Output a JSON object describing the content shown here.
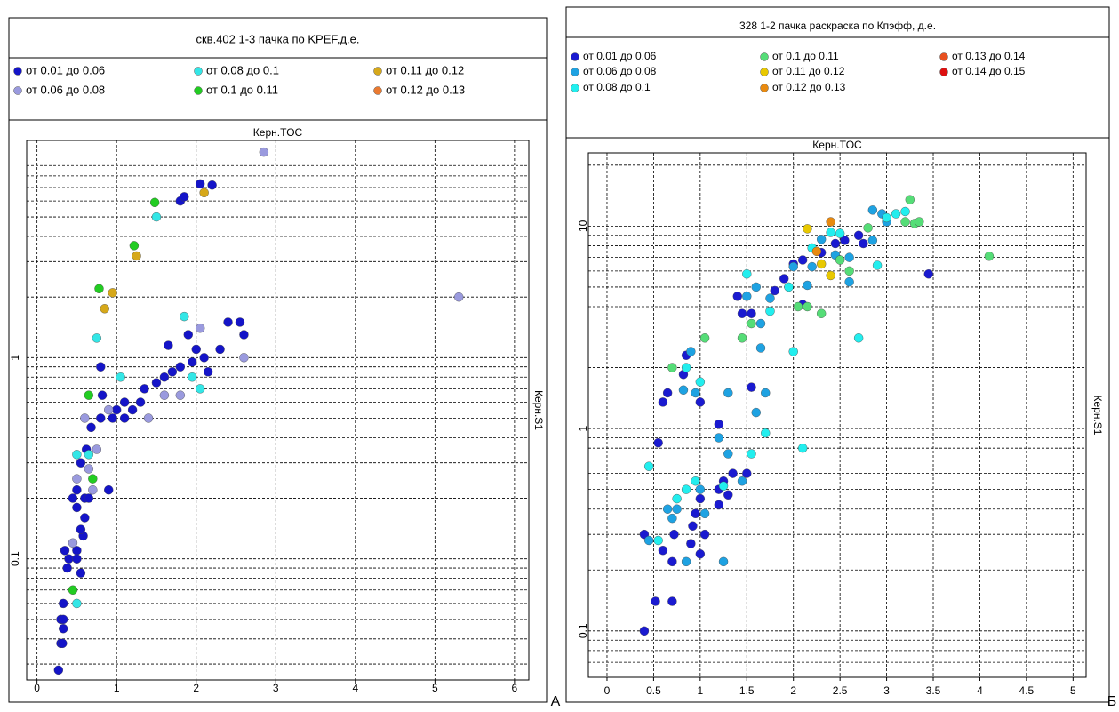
{
  "chart_data": [
    {
      "type": "scatter",
      "title": "скв.402 1-3 пачка по KPEF,д.е.",
      "x_label": "Керн.TOC",
      "y_label": "Керн.S1",
      "panel_label": "A",
      "log_y": true,
      "grid": true,
      "xlim": [
        -0.13,
        6.18
      ],
      "ylim": [
        0.025,
        12
      ],
      "xticks": [
        0,
        1,
        2,
        3,
        4,
        5,
        6
      ],
      "yticks": [
        0.1,
        1
      ],
      "series": [
        {
          "name": "от 0.01 до 0.06",
          "color": "#1414c8",
          "x": [
            0.27,
            0.3,
            0.32,
            0.3,
            0.33,
            0.33,
            0.38,
            0.4,
            0.5,
            0.55,
            0.35,
            0.58,
            0.55,
            0.6,
            0.5,
            0.45,
            0.6,
            0.5,
            0.65,
            0.9,
            0.55,
            0.62,
            0.68,
            0.8,
            0.95,
            1.0,
            1.1,
            1.2,
            1.3,
            1.35,
            1.5,
            1.6,
            1.7,
            1.8,
            1.95,
            2.1,
            2.0,
            1.65,
            1.9,
            2.3,
            2.4,
            2.55,
            2.6,
            2.15,
            0.5,
            0.8,
            0.82,
            1.1,
            2.05,
            2.2,
            1.8,
            1.85,
            0.33
          ],
          "values": [
            0.028,
            0.038,
            0.038,
            0.05,
            0.05,
            0.06,
            0.09,
            0.1,
            0.11,
            0.085,
            0.11,
            0.13,
            0.14,
            0.16,
            0.18,
            0.2,
            0.2,
            0.22,
            0.2,
            0.22,
            0.3,
            0.35,
            0.45,
            0.5,
            0.5,
            0.55,
            0.6,
            0.55,
            0.6,
            0.7,
            0.75,
            0.8,
            0.85,
            0.9,
            0.95,
            1.0,
            1.1,
            1.15,
            1.3,
            1.1,
            1.5,
            1.5,
            1.3,
            0.85,
            0.1,
            0.9,
            0.65,
            0.5,
            7.3,
            7.2,
            6.0,
            6.3,
            0.045
          ]
        },
        {
          "name": "от 0.06 до 0.08",
          "color": "#9a9ade",
          "x": [
            2.85,
            5.3,
            1.8,
            2.6,
            2.05,
            0.6,
            0.9,
            0.65,
            0.5,
            0.7,
            1.4,
            0.75,
            1.6,
            0.45
          ],
          "values": [
            10.5,
            2.0,
            0.65,
            1.0,
            1.4,
            0.5,
            0.55,
            0.28,
            0.25,
            0.22,
            0.5,
            0.35,
            0.65,
            0.12
          ]
        },
        {
          "name": "от 0.08 до 0.1",
          "color": "#33e6e6",
          "x": [
            1.5,
            0.75,
            1.85,
            1.05,
            1.95,
            2.05,
            0.5,
            0.65,
            0.5
          ],
          "values": [
            5.0,
            1.25,
            1.6,
            0.8,
            0.8,
            0.7,
            0.33,
            0.33,
            0.06
          ]
        },
        {
          "name": "от 0.1 до 0.11",
          "color": "#22cc22",
          "x": [
            1.48,
            1.22,
            0.78,
            0.65,
            0.7,
            0.45
          ],
          "values": [
            5.9,
            3.6,
            2.2,
            0.65,
            0.25,
            0.07
          ]
        },
        {
          "name": "от 0.11 до 0.12",
          "color": "#d6a81a",
          "x": [
            2.1,
            1.25,
            0.95,
            0.85
          ],
          "values": [
            6.6,
            3.2,
            2.1,
            1.75
          ]
        },
        {
          "name": "от 0.12 до 0.13",
          "color": "#ea7a30",
          "x": [],
          "values": []
        }
      ]
    },
    {
      "type": "scatter",
      "title": "328  1-2 пачка раскраска по Кпэфф, д.е.",
      "x_label": "Керн.TOC",
      "y_label": "Керн.S1",
      "panel_label": "Б",
      "log_y": true,
      "grid": true,
      "xlim": [
        -0.2,
        5.14
      ],
      "ylim": [
        0.059,
        23
      ],
      "xticks": [
        0,
        0.5,
        1,
        1.5,
        2,
        2.5,
        3,
        3.5,
        4,
        4.5,
        5
      ],
      "yticks": [
        0.1,
        1,
        10
      ],
      "series": [
        {
          "name": "от 0.01 до 0.06",
          "color": "#1a1ad0",
          "x": [
            0.4,
            0.52,
            0.7,
            0.4,
            0.6,
            0.7,
            0.72,
            0.9,
            1.0,
            1.05,
            0.92,
            0.95,
            1.0,
            1.2,
            1.2,
            1.3,
            1.25,
            1.35,
            1.5,
            0.55,
            0.6,
            0.65,
            0.82,
            0.85,
            1.0,
            1.2,
            1.45,
            1.55,
            1.4,
            1.9,
            2.0,
            2.1,
            2.3,
            2.45,
            2.55,
            2.7,
            2.75,
            3.45,
            2.1,
            1.8,
            1.55
          ],
          "values": [
            0.1,
            0.14,
            0.14,
            0.3,
            0.25,
            0.22,
            0.3,
            0.27,
            0.24,
            0.3,
            0.33,
            0.38,
            0.45,
            0.5,
            0.42,
            0.47,
            0.55,
            0.6,
            0.6,
            0.85,
            1.35,
            1.5,
            1.85,
            2.3,
            1.35,
            1.05,
            3.7,
            3.7,
            4.5,
            5.5,
            6.5,
            6.8,
            7.4,
            8.2,
            8.5,
            9.0,
            8.2,
            5.8,
            4.1,
            4.8,
            1.6
          ]
        },
        {
          "name": "от 0.06 до 0.08",
          "color": "#1ea2e2",
          "x": [
            0.45,
            0.65,
            0.7,
            0.85,
            0.75,
            1.05,
            1.25,
            1.0,
            0.82,
            0.9,
            0.95,
            1.2,
            1.3,
            1.45,
            1.3,
            1.6,
            1.7,
            1.65,
            1.65,
            1.5,
            1.6,
            1.75,
            2.0,
            2.2,
            2.45,
            2.6,
            2.85,
            2.95,
            3.0,
            2.85,
            2.3,
            2.15,
            2.6
          ],
          "values": [
            0.28,
            0.4,
            0.36,
            0.22,
            0.4,
            0.38,
            0.22,
            0.5,
            1.55,
            2.4,
            1.5,
            0.9,
            0.75,
            0.55,
            1.5,
            1.2,
            1.5,
            2.5,
            3.3,
            4.5,
            5.0,
            4.4,
            6.3,
            6.3,
            7.2,
            7.0,
            12,
            11.5,
            10.5,
            8.5,
            8.6,
            5.1,
            5.3
          ]
        },
        {
          "name": "от 0.08 до 0.1",
          "color": "#22eeee",
          "x": [
            0.55,
            0.45,
            0.85,
            0.75,
            0.95,
            0.85,
            1.0,
            1.25,
            1.55,
            1.7,
            2.1,
            1.5,
            1.75,
            1.95,
            2.0,
            2.7,
            2.4,
            2.5,
            2.9,
            3.1,
            3.2,
            3.0,
            2.2
          ],
          "values": [
            0.28,
            0.65,
            0.5,
            0.45,
            0.55,
            2.0,
            1.7,
            0.52,
            0.75,
            0.95,
            0.8,
            5.8,
            3.8,
            5.0,
            2.4,
            2.8,
            9.3,
            9.2,
            6.4,
            11.5,
            11.8,
            11,
            7.8
          ]
        },
        {
          "name": "от 0.1 до 0.11",
          "color": "#55dd77",
          "x": [
            0.7,
            1.05,
            1.45,
            1.55,
            2.05,
            2.15,
            2.3,
            2.6,
            2.5,
            3.2,
            3.3,
            3.25,
            2.8,
            4.1,
            3.35
          ],
          "values": [
            2.0,
            2.8,
            2.8,
            3.3,
            4.0,
            4.0,
            3.7,
            6.0,
            6.8,
            10.5,
            10.3,
            13.5,
            9.8,
            7.1,
            10.5
          ]
        },
        {
          "name": "от 0.11 до 0.12",
          "color": "#e8c800",
          "x": [
            2.15,
            2.4,
            2.3
          ],
          "values": [
            9.7,
            5.7,
            6.5
          ]
        },
        {
          "name": "от 0.12 до 0.13",
          "color": "#e88a10",
          "x": [
            2.4,
            2.25
          ],
          "values": [
            10.5,
            7.5
          ]
        },
        {
          "name": "от 0.13 до 0.14",
          "color": "#e85020",
          "x": [],
          "values": []
        },
        {
          "name": "от 0.14 до 0.15",
          "color": "#dd1010",
          "x": [],
          "values": []
        }
      ]
    }
  ]
}
